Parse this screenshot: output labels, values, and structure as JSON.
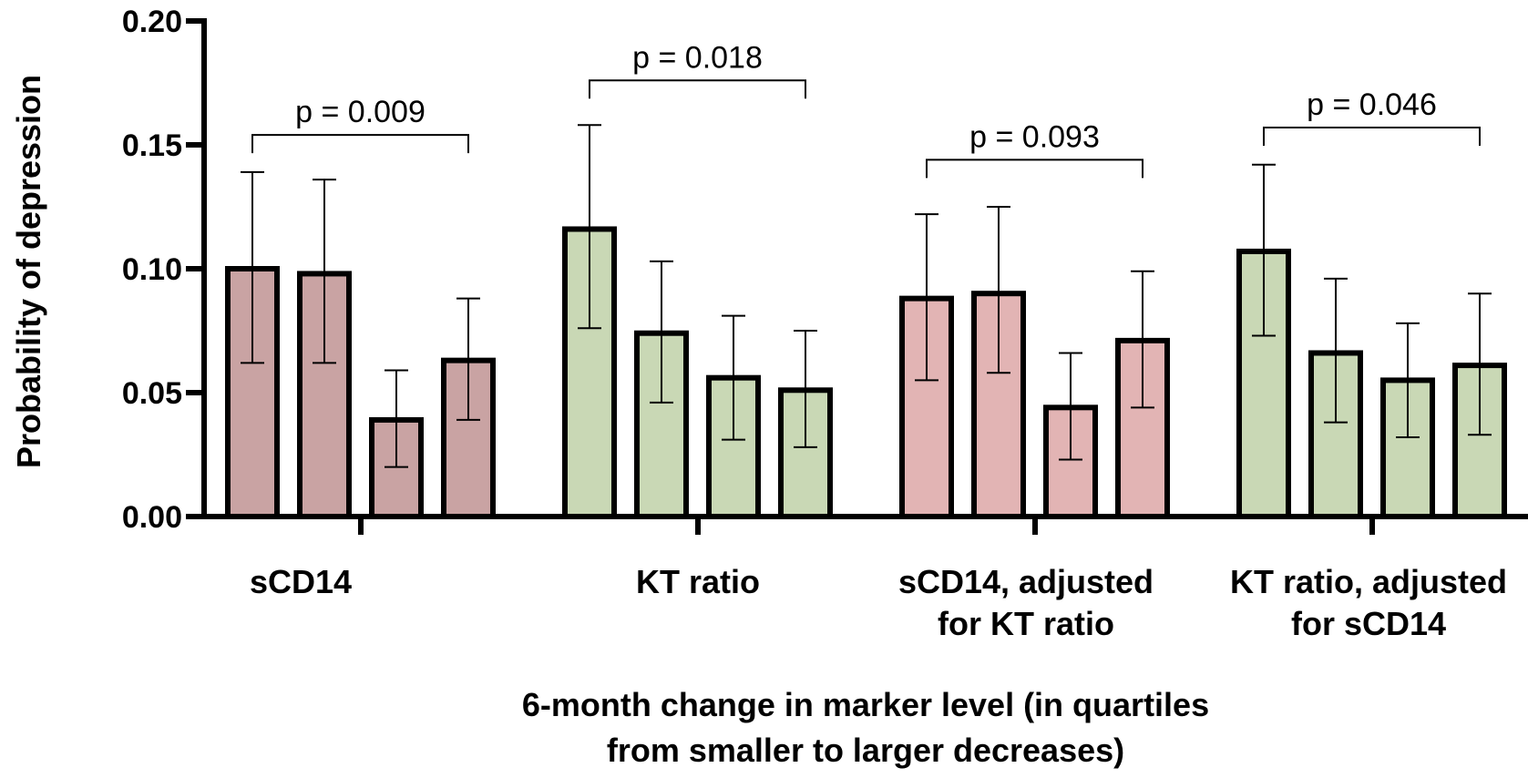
{
  "chart_data": {
    "type": "bar",
    "ylabel": "Probability of depression",
    "xlabel_lines": [
      "6-month change in marker level (in quartiles",
      "from smaller to larger decreases)"
    ],
    "ylim": [
      0,
      0.2
    ],
    "yticks": [
      "0.00",
      "0.05",
      "0.10",
      "0.15",
      "0.20"
    ],
    "yticks_values": [
      0,
      0.05,
      0.1,
      0.15,
      0.2
    ],
    "grid": false,
    "groups": [
      {
        "label_lines": [
          "sCD14"
        ],
        "color": "#c9a3a3",
        "values": [
          0.1,
          0.098,
          0.039,
          0.063
        ],
        "err_low": [
          0.062,
          0.062,
          0.02,
          0.039
        ],
        "err_high": [
          0.139,
          0.136,
          0.059,
          0.088
        ],
        "pvalue": "p = 0.009",
        "bracket_y": 0.154
      },
      {
        "label_lines": [
          "KT ratio"
        ],
        "color": "#c9d8b5",
        "values": [
          0.116,
          0.074,
          0.056,
          0.051
        ],
        "err_low": [
          0.076,
          0.046,
          0.031,
          0.028
        ],
        "err_high": [
          0.158,
          0.103,
          0.081,
          0.075
        ],
        "pvalue": "p = 0.018",
        "bracket_y": 0.176
      },
      {
        "label_lines": [
          "sCD14, adjusted",
          "for KT ratio"
        ],
        "color": "#e2b4b4",
        "values": [
          0.088,
          0.09,
          0.044,
          0.071
        ],
        "err_low": [
          0.055,
          0.058,
          0.023,
          0.044
        ],
        "err_high": [
          0.122,
          0.125,
          0.066,
          0.099
        ],
        "pvalue": "p = 0.093",
        "bracket_y": 0.144
      },
      {
        "label_lines": [
          "KT ratio, adjusted",
          "for sCD14"
        ],
        "color": "#c9d8b5",
        "values": [
          0.107,
          0.066,
          0.055,
          0.061
        ],
        "err_low": [
          0.073,
          0.038,
          0.032,
          0.033
        ],
        "err_high": [
          0.142,
          0.096,
          0.078,
          0.09
        ],
        "pvalue": "p = 0.046",
        "bracket_y": 0.157
      }
    ]
  }
}
